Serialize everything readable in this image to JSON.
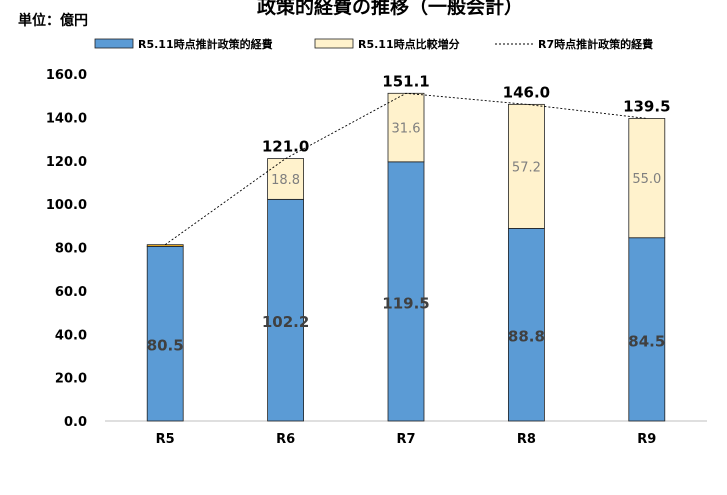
{
  "unit_label": "単位：億円",
  "chart_data": {
    "type": "bar",
    "stacked": true,
    "title": "政策的経費の推移（一般会計）",
    "xlabel": "",
    "ylabel": "",
    "categories": [
      "R5",
      "R6",
      "R7",
      "R8",
      "R9"
    ],
    "ylim": [
      0,
      160
    ],
    "yticks": [
      "0.0",
      "20.0",
      "40.0",
      "60.0",
      "80.0",
      "100.0",
      "120.0",
      "140.0",
      "160.0"
    ],
    "grid": false,
    "legend_position": "top",
    "series": [
      {
        "name": "R5.11時点推計政策的経費",
        "kind": "bar",
        "color": "#5b9bd5",
        "values": [
          80.5,
          102.2,
          119.5,
          88.8,
          84.5
        ],
        "labels": [
          "80.5",
          "102.2",
          "119.5",
          "88.8",
          "84.5"
        ]
      },
      {
        "name": "R5.11時点比較増分",
        "kind": "bar",
        "color": "#fff2cc",
        "values": [
          0.8,
          18.8,
          31.6,
          57.2,
          55.0
        ],
        "labels": [
          "",
          "18.8",
          "31.6",
          "57.2",
          "55.0"
        ]
      },
      {
        "name": "R7時点推計政策的経費",
        "kind": "line",
        "color": "#000000",
        "dashed": true,
        "values": [
          81.3,
          121.0,
          151.1,
          146.0,
          139.5
        ],
        "labels": [
          "",
          "121.0",
          "151.1",
          "146.0",
          "139.5"
        ]
      }
    ]
  }
}
